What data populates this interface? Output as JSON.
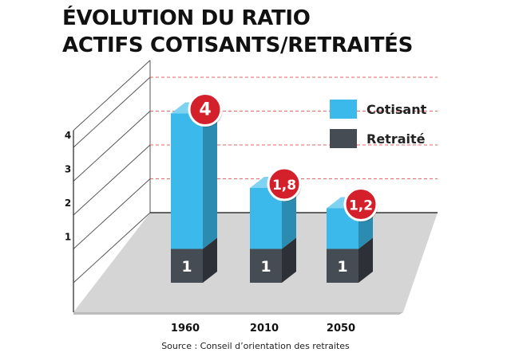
{
  "title": {
    "line1": "ÉVOLUTION DU RATIO",
    "line2": "ACTIFS COTISANTS/RETRAITÉS"
  },
  "source": "Source : Conseil d’orientation des retraites",
  "colors": {
    "cotisant": "#3bb9ea",
    "retraite": "#454c54",
    "badge": "#d4202a"
  },
  "chart_data": {
    "type": "bar",
    "stacked": true,
    "categories": [
      "1960",
      "2010",
      "2050"
    ],
    "series": [
      {
        "name": "Cotisant",
        "values": [
          4,
          1.8,
          1.2
        ],
        "labels": [
          "4",
          "1,8",
          "1,2"
        ]
      },
      {
        "name": "Retraité",
        "values": [
          1,
          1,
          1
        ],
        "labels": [
          "1",
          "1",
          "1"
        ]
      }
    ],
    "yticks": [
      "1",
      "2",
      "3",
      "4"
    ],
    "ylim": [
      0,
      4.5
    ],
    "grid": true,
    "legend": "top-right"
  }
}
